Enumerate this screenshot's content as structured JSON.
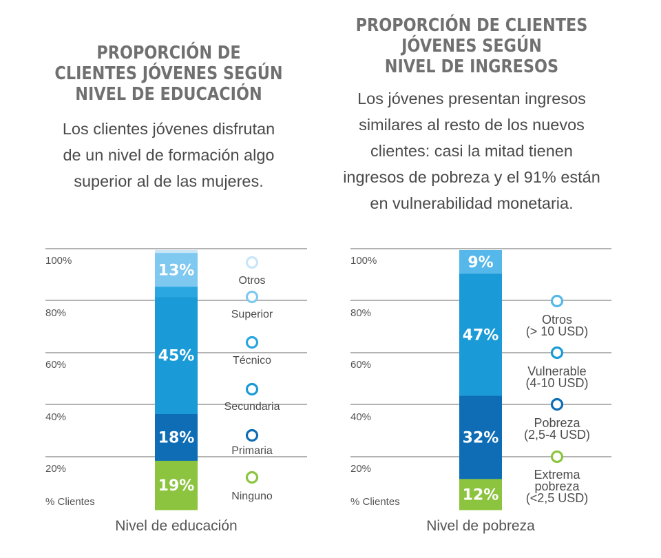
{
  "charts": {
    "left": {
      "title": "PROPORCIÓN DE\nCLIENTES JÓVENES SEGÚN\nNIVEL DE EDUCACIÓN",
      "description": "Los clientes jóvenes disfrutan\nde un nivel de formación algo\nsuperior al de las mujeres."
    },
    "right": {
      "title": "PROPORCIÓN DE CLIENTES\nJÓVENES SEGÚN\nNIVEL DE INGRESOS",
      "description": "Los jóvenes presentan ingresos\nsimilares al resto de los nuevos\nclientes: casi la mitad tienen\ningresos de pobreza y el 91% están\nen vulnerabilidad monetaria."
    }
  },
  "colors": {
    "ninguno": "#8cc43f",
    "primaria": "#0e6db5",
    "secundaria": "#1a9ad6",
    "tecnico": "#2aa6e0",
    "superior": "#7fc8ef",
    "otros": "#c8e6f8",
    "extrema": "#8cc43f",
    "pobreza": "#0e6db5",
    "vulnerable": "#1a9ad6",
    "otros_ingresos": "#56b8ea",
    "grid": "#b3b3b3",
    "axis_text": "#555555"
  },
  "chart_data": [
    {
      "type": "bar",
      "stacked": true,
      "xlabel": "Nivel de educación",
      "ylabel": "% Clientes",
      "yticks": [
        "20%",
        "40%",
        "60%",
        "80%",
        "100%"
      ],
      "ylim": [
        0,
        100
      ],
      "categories": [
        "Nivel de educación"
      ],
      "series": [
        {
          "name": "Ninguno",
          "values": [
            19
          ],
          "label": "19%",
          "color_key": "ninguno"
        },
        {
          "name": "Primaria",
          "values": [
            18
          ],
          "label": "18%",
          "color_key": "primaria"
        },
        {
          "name": "Secundaria",
          "values": [
            45
          ],
          "label": "45%",
          "color_key": "secundaria"
        },
        {
          "name": "Técnico",
          "values": [
            4
          ],
          "label": "",
          "color_key": "tecnico"
        },
        {
          "name": "Superior",
          "values": [
            13
          ],
          "label": "13%",
          "color_key": "superior"
        },
        {
          "name": "Otros",
          "values": [
            1
          ],
          "label": "",
          "color_key": "otros"
        }
      ],
      "legend_order": [
        "Otros",
        "Superior",
        "Técnico",
        "Secundaria",
        "Primaria",
        "Ninguno"
      ]
    },
    {
      "type": "bar",
      "stacked": true,
      "xlabel": "Nivel de pobreza",
      "ylabel": "% Clientes",
      "yticks": [
        "20%",
        "40%",
        "60%",
        "80%",
        "100%"
      ],
      "ylim": [
        0,
        100
      ],
      "categories": [
        "Nivel de pobreza"
      ],
      "series": [
        {
          "name": "Extrema pobreza (<2,5 USD)",
          "values": [
            12
          ],
          "label": "12%",
          "color_key": "extrema"
        },
        {
          "name": "Pobreza (2,5-4 USD)",
          "values": [
            32
          ],
          "label": "32%",
          "color_key": "pobreza"
        },
        {
          "name": "Vulnerable (4-10 USD)",
          "values": [
            47
          ],
          "label": "47%",
          "color_key": "vulnerable"
        },
        {
          "name": "Otros (> 10 USD)",
          "values": [
            9
          ],
          "label": "9%",
          "color_key": "otros_ingresos"
        }
      ],
      "legend_lines": [
        [
          "Otros",
          "(> 10 USD)"
        ],
        [
          "Vulnerable",
          "(4-10 USD)"
        ],
        [
          "Pobreza",
          "(2,5-4 USD)"
        ],
        [
          "Extrema",
          "pobreza",
          "(<2,5 USD)"
        ]
      ]
    }
  ]
}
